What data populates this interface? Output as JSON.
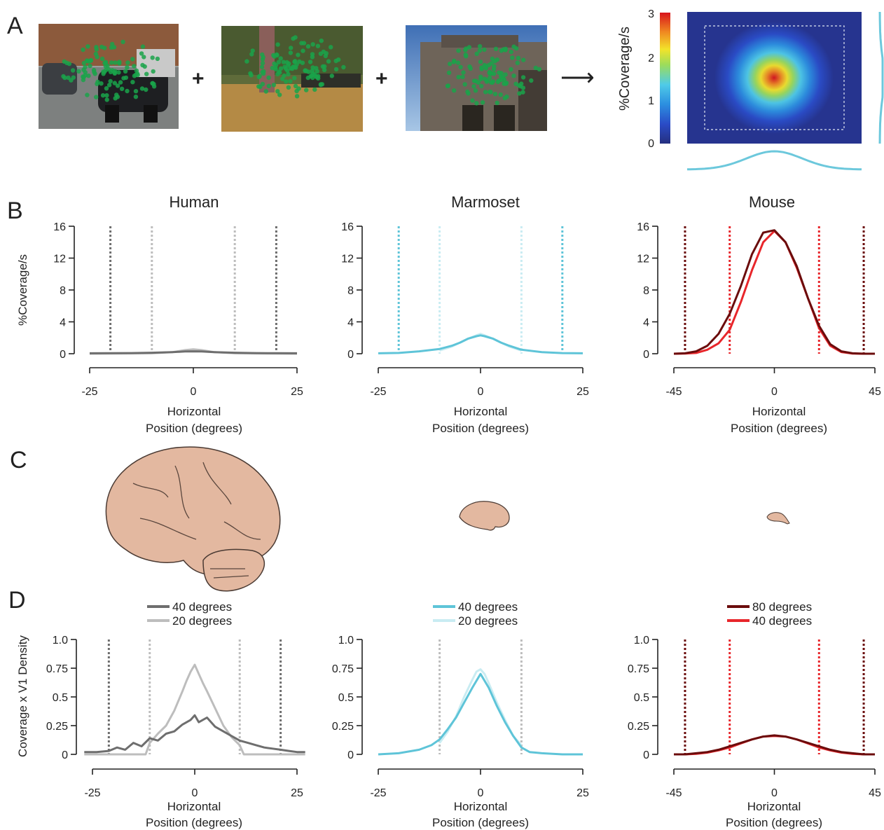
{
  "panel_labels": {
    "a": "A",
    "b": "B",
    "c": "C",
    "d": "D"
  },
  "panel_a": {
    "operators": {
      "plus": "+",
      "arrow": "⟶"
    },
    "colorbar": {
      "label": "%Coverage/s",
      "ticks": [
        "0",
        "1",
        "2",
        "3"
      ],
      "range": [
        0,
        3
      ]
    },
    "heatmap_peak_fraction": 0.9,
    "colors": {
      "fixation": "#1aa34a",
      "marginal": "#6cc8dc"
    }
  },
  "panel_b": {
    "titles": [
      "Human",
      "Marmoset",
      "Mouse"
    ],
    "ylabel": "%Coverage/s",
    "xlabel_line1": "Horizontal",
    "xlabel_line2": "Position (degrees)"
  },
  "panel_d": {
    "ylabel": "Coverage x V1 Density",
    "xlabel_line1": "Horizontal",
    "xlabel_line2": "Position (degrees)",
    "legends": [
      [
        {
          "label": "40 degrees",
          "color": "#6e6e6e"
        },
        {
          "label": "20 degrees",
          "color": "#bdbdbd"
        }
      ],
      [
        {
          "label": "40 degrees",
          "color": "#5ec4d8"
        },
        {
          "label": "20 degrees",
          "color": "#c9ecf2"
        }
      ],
      [
        {
          "label": "80 degrees",
          "color": "#6b0c0c"
        },
        {
          "label": "40 degrees",
          "color": "#e8262b"
        }
      ]
    ]
  },
  "chart_data": [
    {
      "type": "line",
      "panel": "B",
      "title": "Human",
      "xlabel": "Horizontal Position (degrees)",
      "ylabel": "%Coverage/s",
      "xlim": [
        -25,
        25
      ],
      "ylim": [
        0,
        16
      ],
      "xticks": [
        "-25",
        "0",
        "25"
      ],
      "yticks": [
        "0",
        "4",
        "8",
        "12",
        "16"
      ],
      "vlines": [
        {
          "x": -20,
          "color": "#6e6e6e"
        },
        {
          "x": -10,
          "color": "#bdbdbd"
        },
        {
          "x": 10,
          "color": "#bdbdbd"
        },
        {
          "x": 20,
          "color": "#6e6e6e"
        }
      ],
      "series": [
        {
          "name": "40 degrees",
          "color": "#6e6e6e",
          "x": [
            -25,
            -20,
            -15,
            -10,
            -5,
            -2,
            0,
            2,
            5,
            10,
            15,
            20,
            25
          ],
          "y": [
            0.05,
            0.06,
            0.08,
            0.12,
            0.2,
            0.28,
            0.3,
            0.28,
            0.2,
            0.12,
            0.08,
            0.06,
            0.05
          ]
        },
        {
          "name": "20 degrees",
          "color": "#bdbdbd",
          "x": [
            -25,
            -10,
            -5,
            -2,
            0,
            2,
            5,
            10,
            25
          ],
          "y": [
            0.0,
            0.05,
            0.2,
            0.45,
            0.55,
            0.45,
            0.2,
            0.05,
            0.0
          ]
        }
      ]
    },
    {
      "type": "line",
      "panel": "B",
      "title": "Marmoset",
      "xlabel": "Horizontal Position (degrees)",
      "ylabel": "%Coverage/s",
      "xlim": [
        -25,
        25
      ],
      "ylim": [
        0,
        16
      ],
      "xticks": [
        "-25",
        "0",
        "25"
      ],
      "yticks": [
        "0",
        "4",
        "8",
        "12",
        "16"
      ],
      "vlines": [
        {
          "x": -20,
          "color": "#5ec4d8"
        },
        {
          "x": -10,
          "color": "#c9ecf2"
        },
        {
          "x": 10,
          "color": "#c9ecf2"
        },
        {
          "x": 20,
          "color": "#5ec4d8"
        }
      ],
      "series": [
        {
          "name": "40 degrees",
          "color": "#5ec4d8",
          "x": [
            -25,
            -20,
            -15,
            -10,
            -7,
            -5,
            -3,
            -1,
            0,
            1,
            3,
            5,
            7,
            10,
            15,
            20,
            25
          ],
          "y": [
            0.05,
            0.1,
            0.3,
            0.6,
            1.0,
            1.4,
            1.9,
            2.2,
            2.3,
            2.2,
            1.9,
            1.4,
            1.0,
            0.5,
            0.2,
            0.08,
            0.05
          ]
        },
        {
          "name": "20 degrees",
          "color": "#c9ecf2",
          "x": [
            -10,
            -7,
            -5,
            -3,
            -1,
            0,
            1,
            3,
            5,
            7,
            10
          ],
          "y": [
            0.4,
            0.9,
            1.4,
            1.9,
            2.3,
            2.5,
            2.3,
            1.9,
            1.4,
            0.9,
            0.4
          ]
        }
      ]
    },
    {
      "type": "line",
      "panel": "B",
      "title": "Mouse",
      "xlabel": "Horizontal Position (degrees)",
      "ylabel": "%Coverage/s",
      "xlim": [
        -45,
        45
      ],
      "ylim": [
        0,
        16
      ],
      "xticks": [
        "-45",
        "0",
        "45"
      ],
      "yticks": [
        "0",
        "4",
        "8",
        "12",
        "16"
      ],
      "vlines": [
        {
          "x": -40,
          "color": "#6b0c0c"
        },
        {
          "x": -20,
          "color": "#e8262b"
        },
        {
          "x": 20,
          "color": "#e8262b"
        },
        {
          "x": 40,
          "color": "#6b0c0c"
        }
      ],
      "series": [
        {
          "name": "80 degrees",
          "color": "#6b0c0c",
          "x": [
            -45,
            -40,
            -35,
            -30,
            -25,
            -20,
            -15,
            -10,
            -5,
            0,
            5,
            10,
            15,
            20,
            25,
            30,
            35,
            40,
            45
          ],
          "y": [
            0,
            0.05,
            0.3,
            1.0,
            2.5,
            5.0,
            8.5,
            12.5,
            15.2,
            15.5,
            14.0,
            11.0,
            7.0,
            3.5,
            1.2,
            0.3,
            0.05,
            0,
            0
          ]
        },
        {
          "name": "40 degrees",
          "color": "#e8262b",
          "x": [
            -45,
            -40,
            -35,
            -30,
            -25,
            -20,
            -15,
            -10,
            -5,
            0,
            5,
            10,
            15,
            20,
            25,
            30,
            35,
            40,
            45
          ],
          "y": [
            0,
            0.02,
            0.1,
            0.5,
            1.3,
            3.0,
            6.5,
            10.5,
            14.0,
            15.4,
            14.0,
            10.8,
            7.0,
            3.2,
            1.0,
            0.2,
            0.02,
            0,
            0
          ]
        }
      ]
    },
    {
      "type": "line",
      "panel": "D",
      "title": "",
      "xlabel": "Horizontal Position (degrees)",
      "ylabel": "Coverage x V1 Density",
      "xlim": [
        -25,
        25
      ],
      "ylim": [
        0,
        1.0
      ],
      "xticks": [
        "-25",
        "0",
        "25"
      ],
      "yticks": [
        "0",
        "0.25",
        "0.5",
        "0.75",
        "1.0"
      ],
      "vlines": [
        {
          "x": -21,
          "color": "#6e6e6e"
        },
        {
          "x": -11,
          "color": "#bdbdbd"
        },
        {
          "x": 11,
          "color": "#bdbdbd"
        },
        {
          "x": 21,
          "color": "#6e6e6e"
        }
      ],
      "series": [
        {
          "name": "40 degrees",
          "color": "#6e6e6e",
          "x": [
            -27,
            -24,
            -21,
            -19,
            -17,
            -15,
            -13,
            -11,
            -9,
            -7,
            -5,
            -3,
            -1,
            0,
            1,
            3,
            5,
            7,
            9,
            11,
            13,
            15,
            17,
            19,
            21,
            23,
            25,
            27
          ],
          "y": [
            0.02,
            0.02,
            0.03,
            0.06,
            0.04,
            0.1,
            0.07,
            0.14,
            0.12,
            0.18,
            0.2,
            0.26,
            0.3,
            0.34,
            0.28,
            0.32,
            0.24,
            0.2,
            0.16,
            0.12,
            0.1,
            0.08,
            0.06,
            0.05,
            0.04,
            0.03,
            0.02,
            0.02
          ]
        },
        {
          "name": "20 degrees",
          "color": "#bdbdbd",
          "x": [
            -27,
            -12,
            -11,
            -9,
            -7,
            -5,
            -3,
            -2,
            -1,
            0,
            1,
            2,
            3,
            5,
            7,
            9,
            11,
            12,
            27
          ],
          "y": [
            0,
            0,
            0.1,
            0.18,
            0.25,
            0.38,
            0.55,
            0.64,
            0.72,
            0.78,
            0.7,
            0.62,
            0.55,
            0.4,
            0.25,
            0.15,
            0.08,
            0,
            0
          ]
        }
      ]
    },
    {
      "type": "line",
      "panel": "D",
      "title": "",
      "xlabel": "Horizontal Position (degrees)",
      "ylabel": "",
      "xlim": [
        -25,
        25
      ],
      "ylim": [
        0,
        1.0
      ],
      "xticks": [
        "-25",
        "0",
        "25"
      ],
      "yticks": [
        "0",
        "0.25",
        "0.5",
        "0.75",
        "1.0"
      ],
      "vlines": [
        {
          "x": -10,
          "color": "#bdbdbd"
        },
        {
          "x": 10,
          "color": "#bdbdbd"
        }
      ],
      "series": [
        {
          "name": "40 degrees",
          "color": "#5ec4d8",
          "x": [
            -25,
            -20,
            -15,
            -12,
            -10,
            -8,
            -6,
            -4,
            -2,
            0,
            2,
            4,
            6,
            8,
            10,
            12,
            15,
            20,
            25
          ],
          "y": [
            0.0,
            0.01,
            0.04,
            0.08,
            0.13,
            0.22,
            0.32,
            0.45,
            0.58,
            0.7,
            0.58,
            0.42,
            0.28,
            0.16,
            0.06,
            0.02,
            0.01,
            0,
            0
          ]
        },
        {
          "name": "20 degrees",
          "color": "#c9ecf2",
          "x": [
            -10,
            -8,
            -6,
            -4,
            -2,
            -1,
            0,
            1,
            2,
            4,
            6,
            8,
            10
          ],
          "y": [
            0.1,
            0.2,
            0.33,
            0.5,
            0.65,
            0.72,
            0.74,
            0.7,
            0.62,
            0.45,
            0.3,
            0.16,
            0.08
          ]
        }
      ]
    },
    {
      "type": "line",
      "panel": "D",
      "title": "",
      "xlabel": "Horizontal Position (degrees)",
      "ylabel": "",
      "xlim": [
        -45,
        45
      ],
      "ylim": [
        0,
        1.0
      ],
      "xticks": [
        "-45",
        "0",
        "45"
      ],
      "yticks": [
        "0",
        "0.25",
        "0.5",
        "0.75",
        "1.0"
      ],
      "vlines": [
        {
          "x": -40,
          "color": "#6b0c0c"
        },
        {
          "x": -20,
          "color": "#e8262b"
        },
        {
          "x": 20,
          "color": "#e8262b"
        },
        {
          "x": 40,
          "color": "#6b0c0c"
        }
      ],
      "series": [
        {
          "name": "80 degrees",
          "color": "#6b0c0c",
          "x": [
            -45,
            -40,
            -35,
            -30,
            -25,
            -20,
            -15,
            -10,
            -5,
            0,
            5,
            10,
            15,
            20,
            25,
            30,
            35,
            40,
            45
          ],
          "y": [
            0,
            0.0,
            0.01,
            0.02,
            0.04,
            0.07,
            0.1,
            0.13,
            0.155,
            0.165,
            0.155,
            0.13,
            0.1,
            0.07,
            0.04,
            0.02,
            0.01,
            0,
            0
          ]
        },
        {
          "name": "40 degrees",
          "color": "#e8262b",
          "x": [
            -45,
            -40,
            -35,
            -30,
            -25,
            -20,
            -15,
            -10,
            -5,
            0,
            5,
            10,
            15,
            20,
            25,
            30,
            35,
            40,
            45
          ],
          "y": [
            0,
            0.0,
            0.005,
            0.015,
            0.035,
            0.06,
            0.095,
            0.13,
            0.155,
            0.16,
            0.155,
            0.13,
            0.095,
            0.06,
            0.035,
            0.015,
            0.005,
            0,
            0
          ]
        }
      ]
    }
  ]
}
